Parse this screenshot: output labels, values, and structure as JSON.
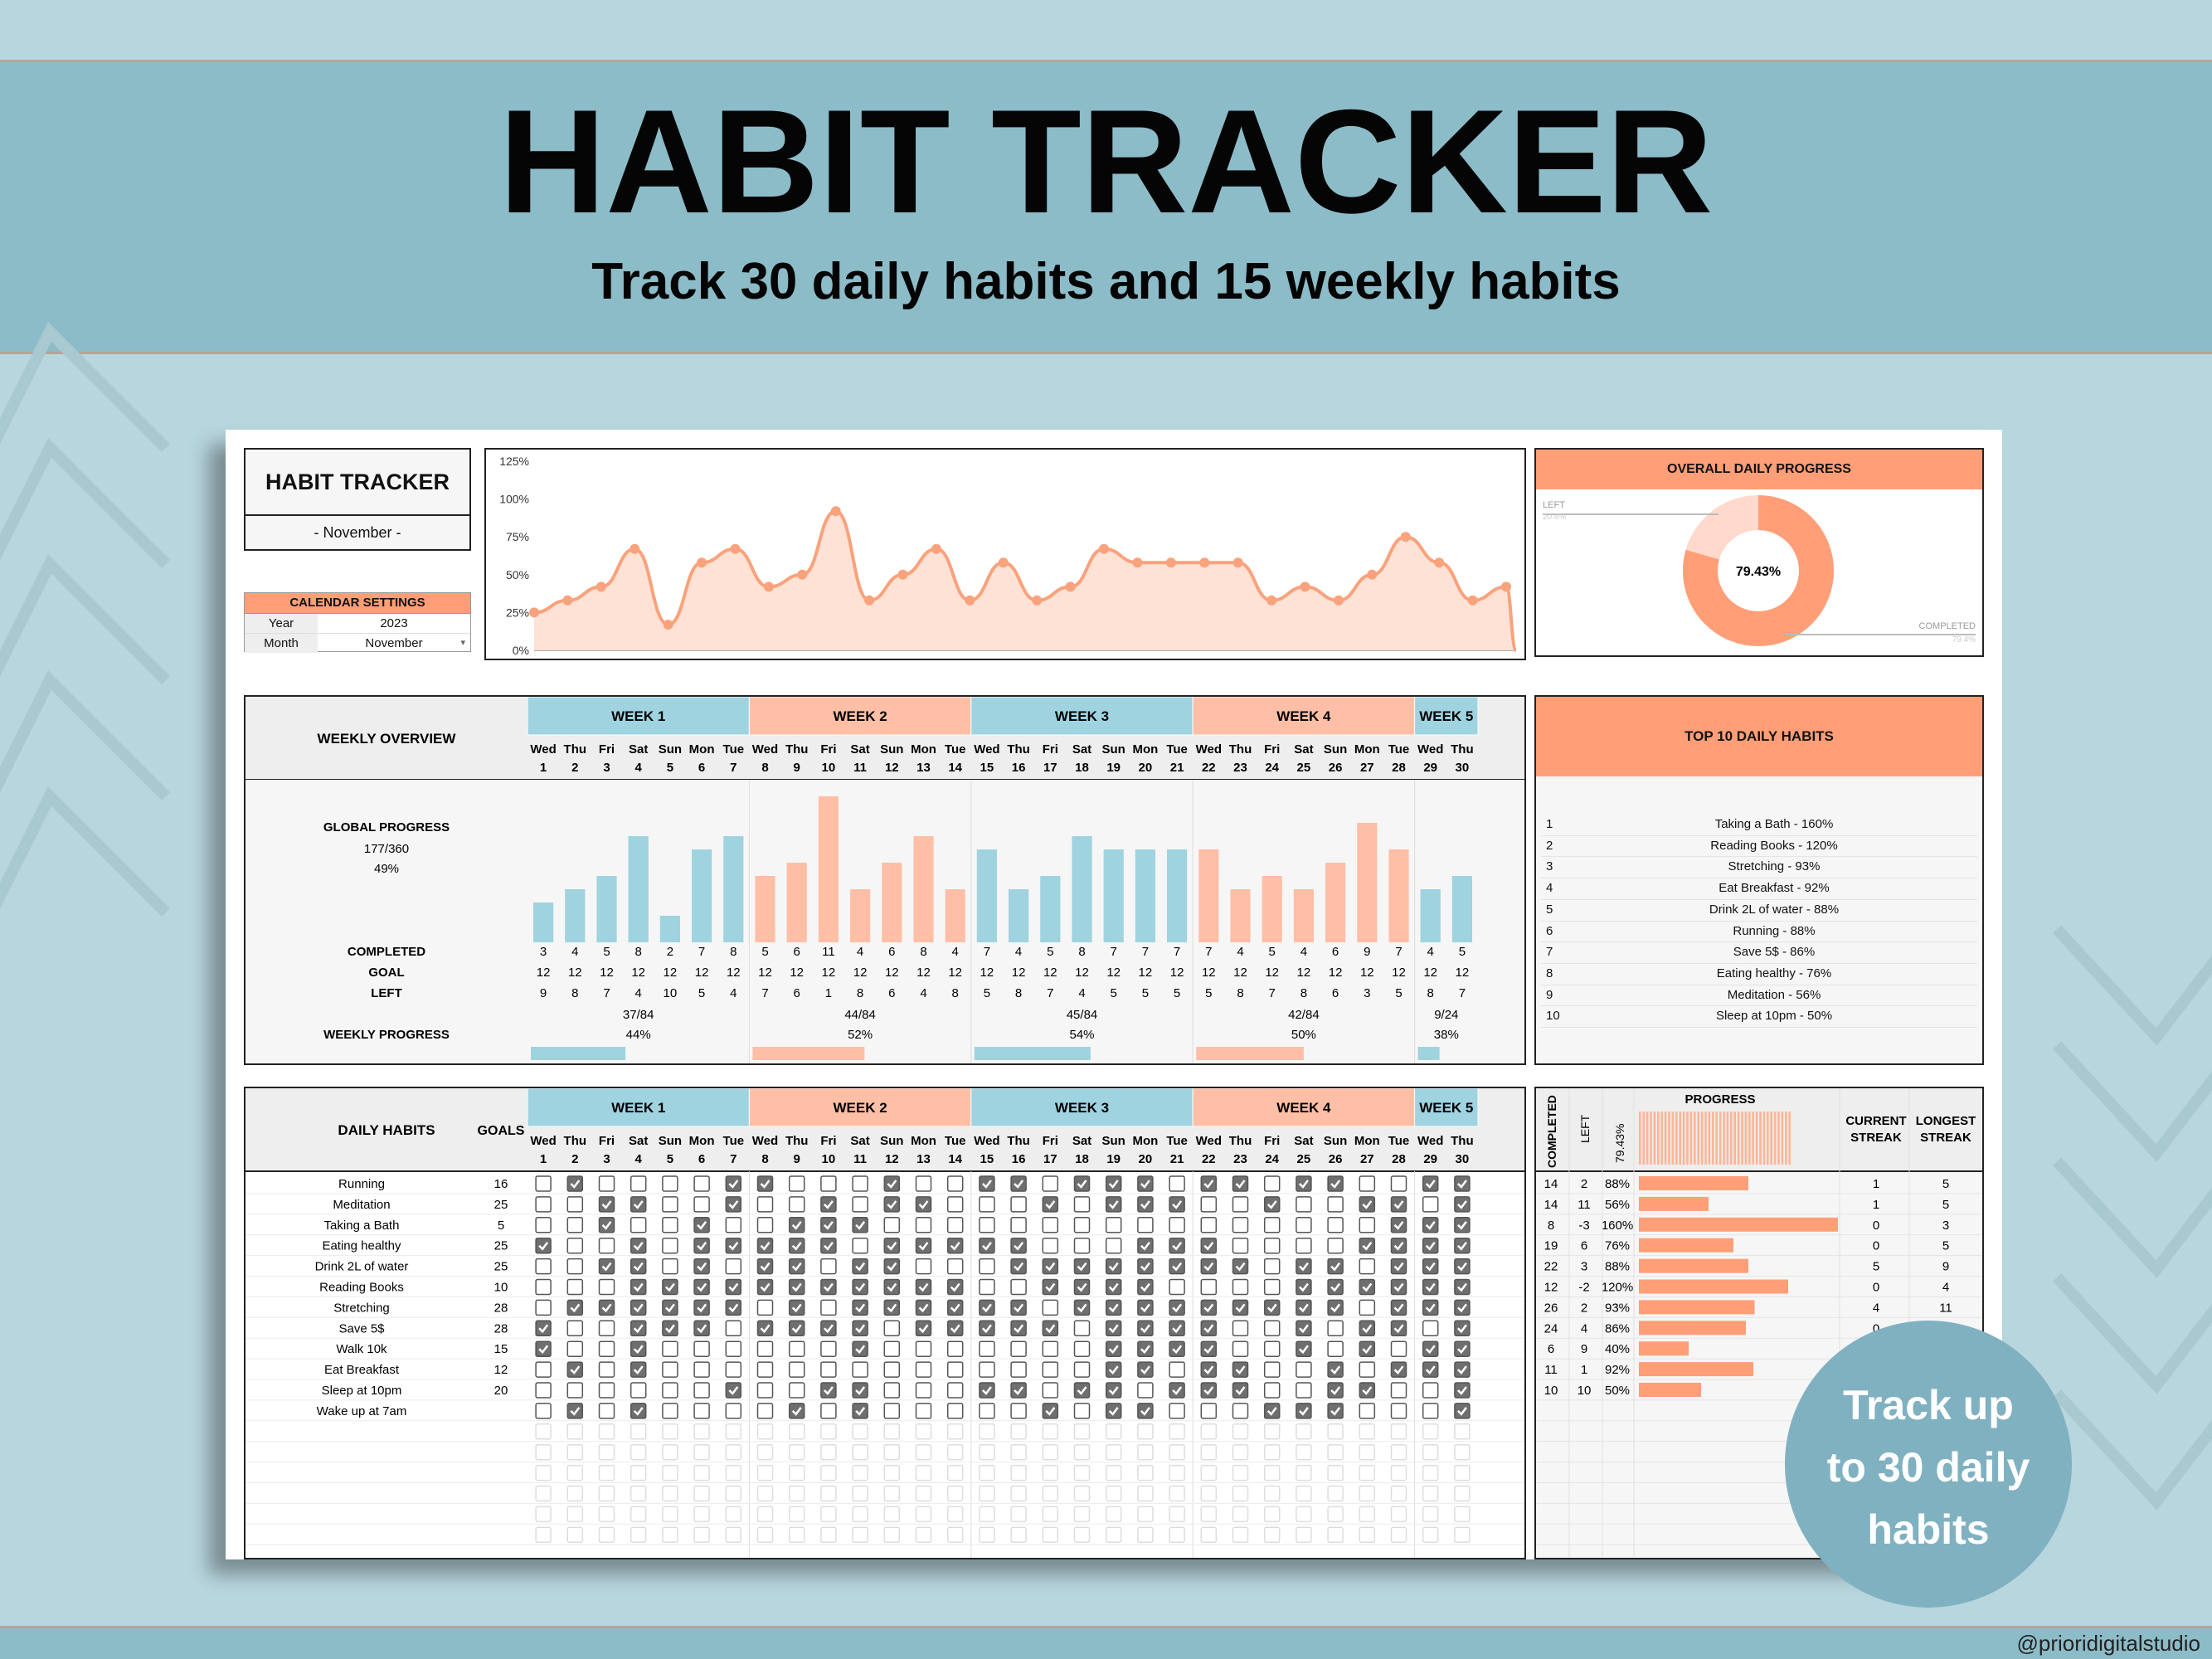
{
  "title": "HABIT TRACKER",
  "subtitle": "Track 30 daily habits and 15 weekly habits",
  "handle": "@prioridigitalstudio",
  "badge": [
    "Track up",
    "to 30 daily",
    "habits"
  ],
  "colors": {
    "teal": "#9fd3e0",
    "salmon": "#ffbfa6",
    "orange": "#ff9e77",
    "line": "#f9a27c"
  },
  "sheet": {
    "logo_title": "HABIT TRACKER",
    "logo_month": "- November -",
    "settings": {
      "header": "CALENDAR SETTINGS",
      "year_label": "Year",
      "year": "2023",
      "month_label": "Month",
      "month": "November"
    },
    "daily_chart": {
      "y_ticks": [
        "125%",
        "100%",
        "75%",
        "50%",
        "25%",
        "0%"
      ],
      "ylim": [
        0,
        125
      ]
    },
    "overall": {
      "title": "OVERALL DAILY PROGRESS",
      "left_label": "LEFT",
      "left_value": "20.6%",
      "completed_label": "COMPLETED",
      "completed_value": "79.4%",
      "center": "79.43%"
    },
    "weeks": [
      "WEEK 1",
      "WEEK 2",
      "WEEK 3",
      "WEEK 4",
      "WEEK 5"
    ],
    "days": [
      "Wed",
      "Thu",
      "Fri",
      "Sat",
      "Sun",
      "Mon",
      "Tue",
      "Wed",
      "Thu",
      "Fri",
      "Sat",
      "Sun",
      "Mon",
      "Tue",
      "Wed",
      "Thu",
      "Fri",
      "Sat",
      "Sun",
      "Mon",
      "Tue",
      "Wed",
      "Thu",
      "Fri",
      "Sat",
      "Sun",
      "Mon",
      "Tue",
      "Wed",
      "Thu"
    ],
    "dates": [
      "1",
      "2",
      "3",
      "4",
      "5",
      "6",
      "7",
      "8",
      "9",
      "10",
      "11",
      "12",
      "13",
      "14",
      "15",
      "16",
      "17",
      "18",
      "19",
      "20",
      "21",
      "22",
      "23",
      "24",
      "25",
      "26",
      "27",
      "28",
      "29",
      "30"
    ],
    "weekly_overview": {
      "title": "WEEKLY OVERVIEW",
      "global_label": "GLOBAL PROGRESS",
      "global_ratio": "177/360",
      "global_pct": "49%",
      "completed_label": "COMPLETED",
      "goal_label": "GOAL",
      "left_label": "LEFT",
      "weekly_label": "WEEKLY PROGRESS",
      "completed": [
        "3",
        "4",
        "5",
        "8",
        "2",
        "7",
        "8",
        "5",
        "6",
        "11",
        "4",
        "6",
        "8",
        "4",
        "7",
        "4",
        "5",
        "8",
        "7",
        "7",
        "7",
        "7",
        "4",
        "5",
        "4",
        "6",
        "9",
        "7",
        "4",
        "5"
      ],
      "goal": [
        "12",
        "12",
        "12",
        "12",
        "12",
        "12",
        "12",
        "12",
        "12",
        "12",
        "12",
        "12",
        "12",
        "12",
        "12",
        "12",
        "12",
        "12",
        "12",
        "12",
        "12",
        "12",
        "12",
        "12",
        "12",
        "12",
        "12",
        "12",
        "12",
        "12"
      ],
      "left": [
        "9",
        "8",
        "7",
        "4",
        "10",
        "5",
        "4",
        "7",
        "6",
        "1",
        "8",
        "6",
        "4",
        "8",
        "5",
        "8",
        "7",
        "4",
        "5",
        "5",
        "5",
        "5",
        "8",
        "7",
        "8",
        "6",
        "3",
        "5",
        "8",
        "7"
      ],
      "week_ratios": [
        "37/84",
        "44/84",
        "45/84",
        "42/84",
        "9/24"
      ],
      "week_pcts": [
        "44%",
        "52%",
        "54%",
        "50%",
        "38%"
      ],
      "week_progress": [
        0.44,
        0.52,
        0.54,
        0.5,
        0.38
      ]
    },
    "top10": {
      "title": "TOP 10 DAILY HABITS",
      "items": [
        {
          "rank": "1",
          "text": "Taking a Bath - 160%"
        },
        {
          "rank": "2",
          "text": "Reading Books - 120%"
        },
        {
          "rank": "3",
          "text": "Stretching - 93%"
        },
        {
          "rank": "4",
          "text": "Eat Breakfast - 92%"
        },
        {
          "rank": "5",
          "text": "Drink 2L of water - 88%"
        },
        {
          "rank": "6",
          "text": "Running - 88%"
        },
        {
          "rank": "7",
          "text": "Save 5$ - 86%"
        },
        {
          "rank": "8",
          "text": "Eating healthy - 76%"
        },
        {
          "rank": "9",
          "text": "Meditation - 56%"
        },
        {
          "rank": "10",
          "text": "Sleep at 10pm - 50%"
        }
      ]
    },
    "daily": {
      "title": "DAILY HABITS",
      "goals_label": "GOALS",
      "habits": [
        {
          "name": "Running",
          "goal": "16"
        },
        {
          "name": "Meditation",
          "goal": "25"
        },
        {
          "name": "Taking a Bath",
          "goal": "5"
        },
        {
          "name": "Eating healthy",
          "goal": "25"
        },
        {
          "name": "Drink 2L of water",
          "goal": "25"
        },
        {
          "name": "Reading Books",
          "goal": "10"
        },
        {
          "name": "Stretching",
          "goal": "28"
        },
        {
          "name": "Save 5$",
          "goal": "28"
        },
        {
          "name": "Walk 10k",
          "goal": "15"
        },
        {
          "name": "Eat Breakfast",
          "goal": "12"
        },
        {
          "name": "Sleep at 10pm",
          "goal": "20"
        },
        {
          "name": "Wake up at 7am",
          "goal": ""
        }
      ],
      "checks": [
        "010000110001001101110110110011",
        "001100100101100010111001001101",
        "001001001110000000000000000111",
        "100101111101111100011100001111",
        "001101011011000111111110110111",
        "000111111111110011110000111111",
        "011111101011111101111111110111",
        "100111011110111110111100101101",
        "100100000010000000111100101011",
        "010100000000000000110110010111",
        "000000100110001101101110011001",
        "010100001010000010110001110001"
      ]
    },
    "progress_panel": {
      "completed_label": "COMPLETED",
      "left_label": "LEFT",
      "pct_label": "79.43%",
      "progress_label": "PROGRESS",
      "current_label": "CURRENT STREAK",
      "longest_label": "LONGEST STREAK",
      "rows": [
        {
          "c": "14",
          "l": "2",
          "p": "88%",
          "v": 0.88,
          "cur": "1",
          "long": "5"
        },
        {
          "c": "14",
          "l": "11",
          "p": "56%",
          "v": 0.56,
          "cur": "1",
          "long": "5"
        },
        {
          "c": "8",
          "l": "-3",
          "p": "160%",
          "v": 1.6,
          "cur": "0",
          "long": "3"
        },
        {
          "c": "19",
          "l": "6",
          "p": "76%",
          "v": 0.76,
          "cur": "0",
          "long": "5"
        },
        {
          "c": "22",
          "l": "3",
          "p": "88%",
          "v": 0.88,
          "cur": "5",
          "long": "9"
        },
        {
          "c": "12",
          "l": "-2",
          "p": "120%",
          "v": 1.2,
          "cur": "0",
          "long": "4"
        },
        {
          "c": "26",
          "l": "2",
          "p": "93%",
          "v": 0.93,
          "cur": "4",
          "long": "11"
        },
        {
          "c": "24",
          "l": "4",
          "p": "86%",
          "v": 0.86,
          "cur": "0",
          "long": ""
        },
        {
          "c": "6",
          "l": "9",
          "p": "40%",
          "v": 0.4,
          "cur": "",
          "long": ""
        },
        {
          "c": "11",
          "l": "1",
          "p": "92%",
          "v": 0.92,
          "cur": "",
          "long": ""
        },
        {
          "c": "10",
          "l": "10",
          "p": "50%",
          "v": 0.5,
          "cur": "",
          "long": ""
        }
      ]
    }
  },
  "chart_data": {
    "type": "area",
    "x": [
      "1",
      "2",
      "3",
      "4",
      "5",
      "6",
      "7",
      "8",
      "9",
      "10",
      "11",
      "12",
      "13",
      "14",
      "15",
      "16",
      "17",
      "18",
      "19",
      "20",
      "21",
      "22",
      "23",
      "24",
      "25",
      "26",
      "27",
      "28",
      "29",
      "30"
    ],
    "values": [
      25,
      33,
      42,
      67,
      17,
      58,
      67,
      42,
      50,
      92,
      33,
      50,
      67,
      33,
      58,
      33,
      42,
      67,
      58,
      58,
      58,
      58,
      33,
      42,
      33,
      50,
      75,
      58,
      33,
      42
    ],
    "ylim": [
      0,
      125
    ],
    "xlabel": "",
    "ylabel": ""
  }
}
